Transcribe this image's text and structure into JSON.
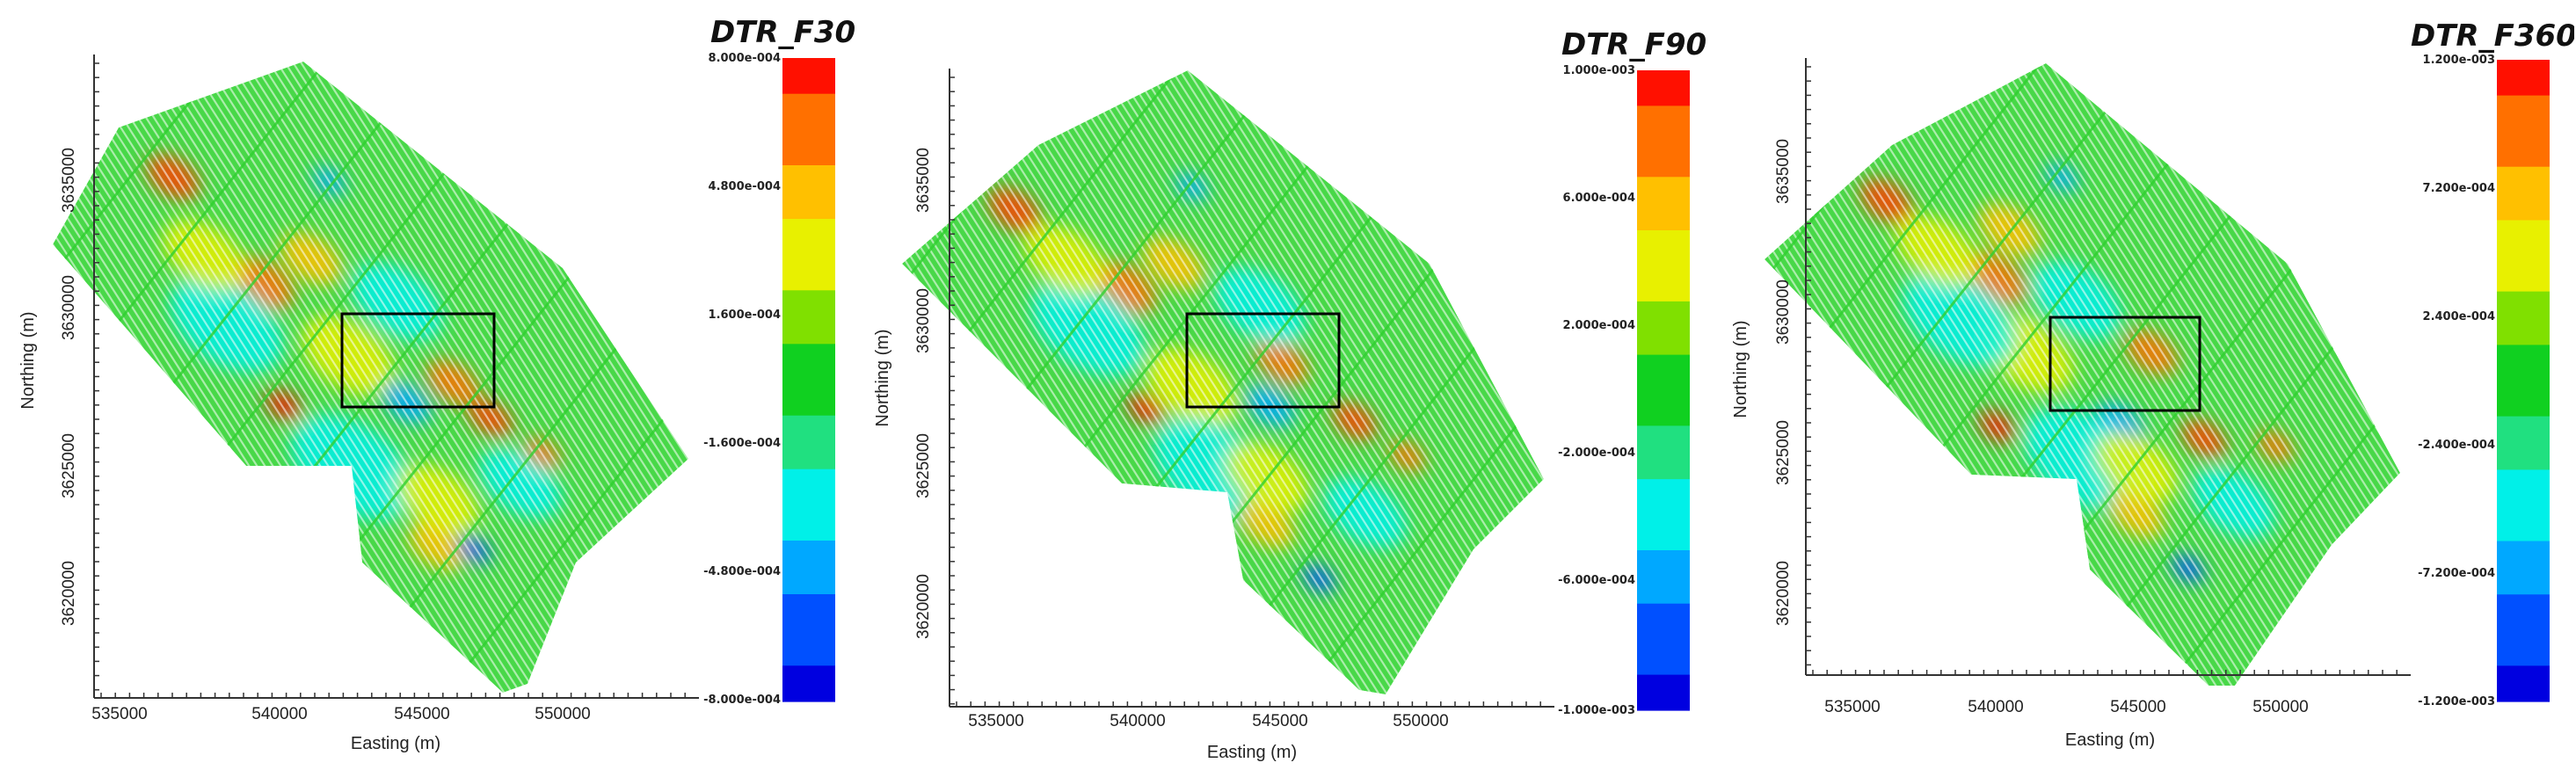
{
  "panels": [
    {
      "title": "DTR_F30",
      "xlabel": "Easting (m)",
      "ylabel": "Northing (m)",
      "x_ticks": [
        "535000",
        "540000",
        "545000",
        "550000"
      ],
      "y_ticks": [
        "3635000",
        "3630000",
        "3625000",
        "3620000"
      ],
      "colorbar_labels": [
        "8.000e-004",
        "4.800e-004",
        "1.600e-004",
        "-1.600e-004",
        "-4.800e-004",
        "-8.000e-004"
      ]
    },
    {
      "title": "DTR_F90",
      "xlabel": "Easting (m)",
      "ylabel": "Northing (m)",
      "x_ticks": [
        "535000",
        "540000",
        "545000",
        "550000"
      ],
      "y_ticks": [
        "3635000",
        "3630000",
        "3625000",
        "3620000"
      ],
      "colorbar_labels": [
        "1.000e-003",
        "6.000e-004",
        "2.000e-004",
        "-2.000e-004",
        "-6.000e-004",
        "-1.000e-003"
      ]
    },
    {
      "title": "DTR_F360",
      "xlabel": "Easting (m)",
      "ylabel": "Northing (m)",
      "x_ticks": [
        "535000",
        "540000",
        "545000",
        "550000"
      ],
      "y_ticks": [
        "3635000",
        "3630000",
        "3625000",
        "3620000"
      ],
      "colorbar_labels": [
        "1.200e-003",
        "7.200e-004",
        "2.400e-004",
        "-2.400e-004",
        "-7.200e-004",
        "-1.200e-003"
      ]
    }
  ],
  "colormap": [
    "#0000e0",
    "#0050ff",
    "#00a8ff",
    "#00f0e8",
    "#20e080",
    "#10d020",
    "#80e000",
    "#e8f000",
    "#ffc000",
    "#ff7000",
    "#ff1000"
  ],
  "survey_fill": "#48d848",
  "highlight_box_color": "#000000"
}
